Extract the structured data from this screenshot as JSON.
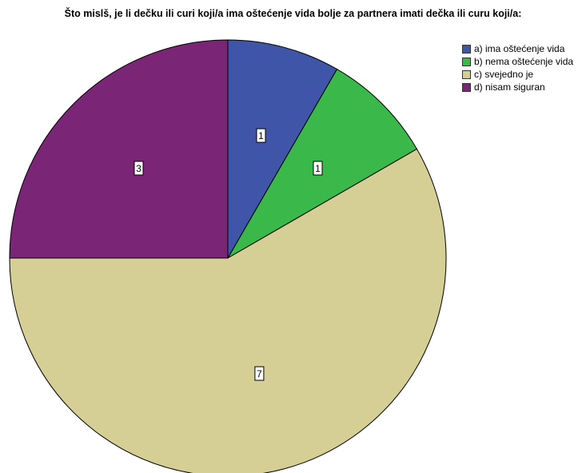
{
  "chart_data": {
    "type": "pie",
    "title": "Što mislš, je li dečku ili curi koji/a ima oštećenje vida bolje za partnera imati dečka ili curu koji/a:",
    "categories": [
      "a) ima oštećenje vida",
      "b) nema oštećenje vida",
      "c) svejedno je",
      "d) nisam siguran"
    ],
    "values": [
      1,
      1,
      7,
      3
    ],
    "colors": [
      "#3f56a8",
      "#3ab94a",
      "#d5cf96",
      "#7b2577"
    ],
    "start_angle_deg": 0,
    "direction": "clockwise",
    "legend": "top-right",
    "data_labels": true
  }
}
